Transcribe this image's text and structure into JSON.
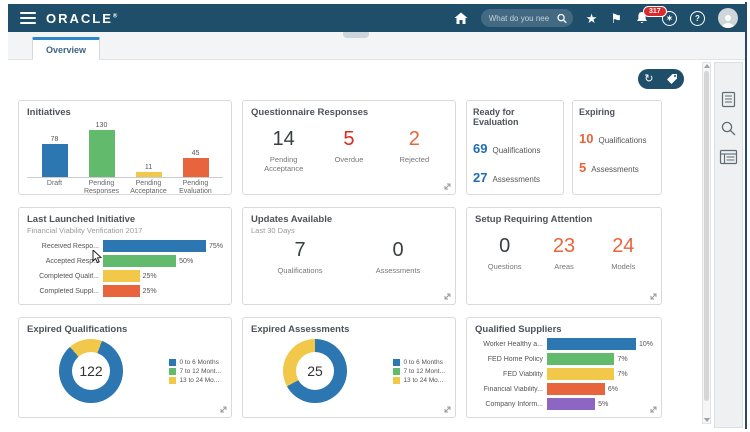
{
  "header": {
    "brand": "ORACLE",
    "reg_mark": "®",
    "search": {
      "placeholder": "What do you nee"
    },
    "notifications_badge": "317",
    "help_glyph": "?",
    "settings_glyph": "✶",
    "star_glyph": "★",
    "flag_glyph": "⚑"
  },
  "tab": {
    "label": "Overview"
  },
  "toolbar": {
    "refresh_glyph": "↻"
  },
  "colors": {
    "header_bg": "#1f4e6b",
    "accent_blue": "#2c77b2",
    "green": "#62bb6c",
    "yellow": "#f2c84b",
    "orange": "#e8643c",
    "red": "#dd2b1e",
    "number_blue": "#1f6db3",
    "number_dark": "#3a3f42"
  },
  "cards": {
    "initiatives": {
      "title": "Initiatives",
      "chart_data": {
        "type": "bar",
        "categories": [
          "Draft",
          "Pending Responses",
          "Pending Acceptance",
          "Pending Evaluation"
        ],
        "values": [
          78,
          130,
          11,
          45
        ],
        "colors": [
          "#2c77b2",
          "#62bb6c",
          "#f2c84b",
          "#e8643c"
        ],
        "ylim": [
          0,
          130
        ]
      }
    },
    "questionnaire_responses": {
      "title": "Questionnaire Responses",
      "stats": [
        {
          "value": "14",
          "label": "Pending Acceptance",
          "color": "#3a3f42"
        },
        {
          "value": "5",
          "label": "Overdue",
          "color": "#dd2b1e"
        },
        {
          "value": "2",
          "label": "Rejected",
          "color": "#e8643c"
        }
      ]
    },
    "ready_for_evaluation": {
      "title": "Ready for Evaluation",
      "rows": [
        {
          "value": "69",
          "label": "Qualifications",
          "color": "#1f6db3"
        },
        {
          "value": "27",
          "label": "Assessments",
          "color": "#1f6db3"
        }
      ]
    },
    "expiring": {
      "title": "Expiring",
      "rows": [
        {
          "value": "10",
          "label": "Qualifications",
          "color": "#e8643c"
        },
        {
          "value": "5",
          "label": "Assessments",
          "color": "#e8643c"
        }
      ]
    },
    "last_launched_initiative": {
      "title": "Last Launched Initiative",
      "subtitle": "Financial Viability Verification 2017",
      "chart_data": {
        "type": "hbar",
        "categories": [
          "Received Respo...",
          "Accepted Resp...",
          "Completed Qualif...",
          "Completed Suppl..."
        ],
        "values": [
          75,
          50,
          25,
          25
        ],
        "value_labels": [
          "75%",
          "50%",
          "25%",
          "25%"
        ],
        "colors": [
          "#2c77b2",
          "#62bb6c",
          "#f2c84b",
          "#e8643c"
        ],
        "xlim": [
          0,
          82
        ],
        "label_width": 76
      }
    },
    "updates_available": {
      "title": "Updates Available",
      "subtitle": "Last 30 Days",
      "stats": [
        {
          "value": "7",
          "label": "Qualifications",
          "color": "#3a3f42"
        },
        {
          "value": "0",
          "label": "Assessments",
          "color": "#3a3f42"
        }
      ]
    },
    "setup_requiring_attention": {
      "title": "Setup Requiring Attention",
      "stats": [
        {
          "value": "0",
          "label": "Questions",
          "color": "#3a3f42"
        },
        {
          "value": "23",
          "label": "Areas",
          "color": "#e8643c"
        },
        {
          "value": "24",
          "label": "Models",
          "color": "#e8643c"
        }
      ]
    },
    "expired_qualifications": {
      "title": "Expired Qualifications",
      "chart_data": {
        "type": "donut",
        "center_value": "122",
        "rotate": 20,
        "segments": [
          {
            "label": "0 to 6 Months",
            "pct": 83,
            "color": "#2c77b2"
          },
          {
            "label": "7 to 12 Mont...",
            "pct": 0,
            "color": "#62bb6c"
          },
          {
            "label": "13 to 24 Mo...",
            "pct": 17,
            "color": "#f2c84b"
          }
        ]
      }
    },
    "expired_assessments": {
      "title": "Expired Assessments",
      "chart_data": {
        "type": "donut",
        "center_value": "25",
        "rotate": 0,
        "segments": [
          {
            "label": "0 to 6 Months",
            "pct": 67,
            "color": "#2c77b2"
          },
          {
            "label": "7 to 12 Mont...",
            "pct": 0,
            "color": "#62bb6c"
          },
          {
            "label": "13 to 24 Mo...",
            "pct": 33,
            "color": "#f2c84b"
          }
        ]
      }
    },
    "qualified_suppliers": {
      "title": "Qualified Suppliers",
      "chart_data": {
        "type": "hbar",
        "categories": [
          "Worker Healthy a...",
          "FED Home Policy",
          "FED Viability",
          "Financial Viability...",
          "Company Inform..."
        ],
        "values": [
          10,
          7,
          7,
          6,
          5
        ],
        "value_labels": [
          "10%",
          "7%",
          "7%",
          "6%",
          "5%"
        ],
        "colors": [
          "#2c77b2",
          "#62bb6c",
          "#f2c84b",
          "#e8643c",
          "#8d66c4"
        ],
        "xlim": [
          0,
          11
        ],
        "label_width": 72
      }
    }
  }
}
